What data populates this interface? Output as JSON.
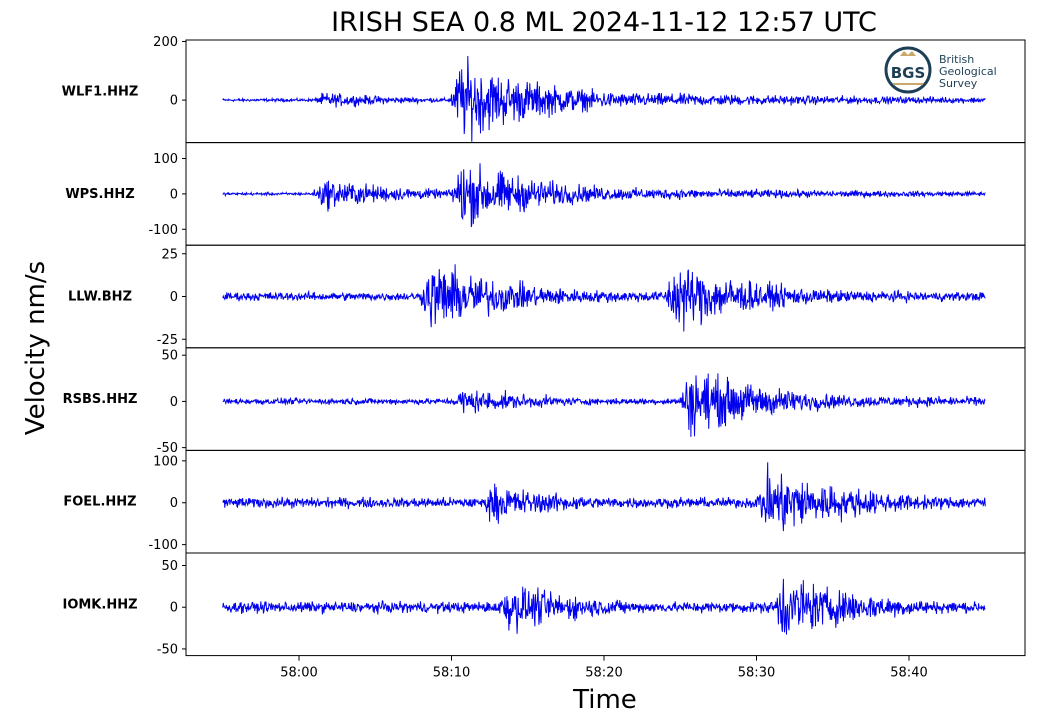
{
  "chart_data": {
    "type": "line",
    "title": "IRISH SEA 0.8 ML   2024-11-12 12:57 UTC",
    "xlabel": "Time",
    "ylabel": "Velocity nm/s",
    "x_ticks": [
      "58:00",
      "58:10",
      "58:20",
      "58:30",
      "58:40"
    ],
    "x_range_seconds": [
      57.5,
      58.45
    ],
    "x_start": "57:55",
    "x_end": "58:45",
    "line_color": "#0000ee",
    "grid": false,
    "logo": {
      "name": "bgs-logo",
      "lines": [
        "British",
        "Geological",
        "Survey"
      ],
      "badge": "BGS"
    },
    "series": [
      {
        "name": "WLF1.HHZ",
        "ylim": [
          -145,
          205
        ],
        "yticks": [
          "200",
          "0"
        ],
        "noise": 6,
        "peak_amp": 190,
        "onsets": [
          {
            "t": "58:01",
            "amp": 35
          },
          {
            "t": "58:10",
            "amp": 190
          }
        ]
      },
      {
        "name": "WPS.HHZ",
        "ylim": [
          -145,
          145
        ],
        "yticks": [
          "100",
          "0",
          "-100"
        ],
        "noise": 5,
        "peak_amp": 130,
        "onsets": [
          {
            "t": "58:01",
            "amp": 60
          },
          {
            "t": "58:10",
            "amp": 130
          }
        ]
      },
      {
        "name": "LLW.BHZ",
        "ylim": [
          -30,
          30
        ],
        "yticks": [
          "25",
          "0",
          "-25"
        ],
        "noise": 3,
        "peak_amp": 28,
        "onsets": [
          {
            "t": "58:08",
            "amp": 28
          },
          {
            "t": "58:24",
            "amp": 28
          }
        ]
      },
      {
        "name": "RSBS.HHZ",
        "ylim": [
          -53,
          58
        ],
        "yticks": [
          "50",
          "0",
          "-50"
        ],
        "noise": 4,
        "peak_amp": 50,
        "onsets": [
          {
            "t": "58:10",
            "amp": 20
          },
          {
            "t": "58:25",
            "amp": 50
          }
        ]
      },
      {
        "name": "FOEL.HHZ",
        "ylim": [
          -120,
          125
        ],
        "yticks": [
          "100",
          "0",
          "-100"
        ],
        "noise": 15,
        "peak_amp": 120,
        "onsets": [
          {
            "t": "58:12",
            "amp": 60
          },
          {
            "t": "58:30",
            "amp": 120
          }
        ]
      },
      {
        "name": "IOMK.HHZ",
        "ylim": [
          -58,
          65
        ],
        "yticks": [
          "50",
          "0",
          "-50"
        ],
        "noise": 8,
        "peak_amp": 55,
        "onsets": [
          {
            "t": "58:13",
            "amp": 40
          },
          {
            "t": "58:31",
            "amp": 55
          }
        ]
      }
    ]
  }
}
